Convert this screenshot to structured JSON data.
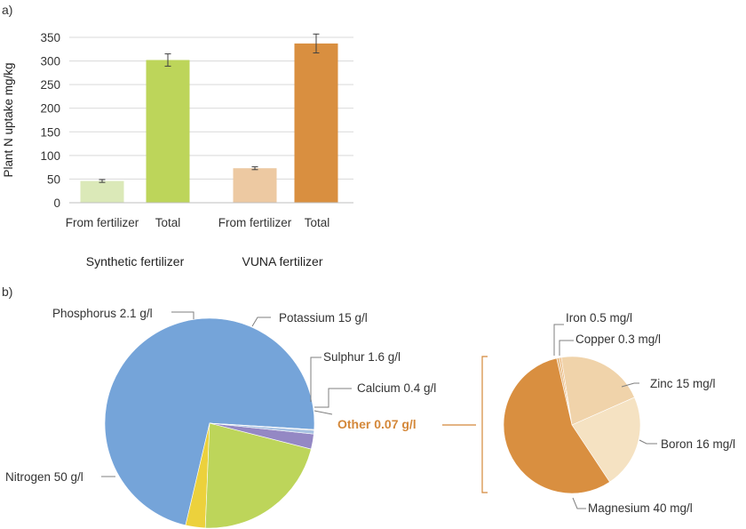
{
  "colors": {
    "axis": "#bfbfbf",
    "grid": "#d9d9d9",
    "leader": "#7f7f7f",
    "bracket": "#d4883a",
    "other_label": "#d4883a",
    "error_bar": "#404040"
  },
  "chart_data": [
    {
      "type": "bar",
      "panel_label": "a)",
      "ylabel": "Plant N uptake mg/kg",
      "ylim": [
        0,
        350
      ],
      "yticks": [
        "0",
        "50",
        "100",
        "150",
        "200",
        "250",
        "300",
        "350"
      ],
      "grid": true,
      "groups": [
        {
          "name": "Synthetic fertilizer",
          "bars": [
            {
              "label": "From fertilizer",
              "value": 46,
              "error": 3,
              "color": "#dbe9b8"
            },
            {
              "label": "Total",
              "value": 302,
              "error": 13,
              "color": "#bdd55a"
            }
          ]
        },
        {
          "name": "VUNA fertilizer",
          "bars": [
            {
              "label": "From fertilizer",
              "value": 73,
              "error": 3,
              "color": "#edc9a2"
            },
            {
              "label": "Total",
              "value": 337,
              "error": 20,
              "color": "#d98f40"
            }
          ]
        }
      ]
    },
    {
      "type": "pie",
      "panel_label": "b)",
      "slices": [
        {
          "label": "Nitrogen 50 g/l",
          "value": 50,
          "color": "#75a4d9"
        },
        {
          "label": "Phosphorus 2.1 g/l",
          "value": 2.1,
          "color": "#ecd13c"
        },
        {
          "label": "Potassium 15 g/l",
          "value": 15,
          "color": "#bdd55a"
        },
        {
          "label": "Sulphur 1.6 g/l",
          "value": 1.6,
          "color": "#9488c4"
        },
        {
          "label": "Calcium 0.4 g/l",
          "value": 0.4,
          "color": "#a8c2e2"
        },
        {
          "label": "Other 0.07 g/l",
          "value": 0.07,
          "color": "#d4883a"
        }
      ]
    },
    {
      "type": "pie",
      "title": "",
      "slices": [
        {
          "label": "Iron 0.5 mg/l",
          "value": 0.5,
          "color": "#e9c18f"
        },
        {
          "label": "Copper 0.3 mg/l",
          "value": 0.3,
          "color": "#e9b274"
        },
        {
          "label": "Zinc 15 mg/l",
          "value": 15,
          "color": "#f0d3aa"
        },
        {
          "label": "Boron 16 mg/l",
          "value": 16,
          "color": "#f5e2c2"
        },
        {
          "label": "Magnesium 40 mg/l",
          "value": 40,
          "color": "#d98f40"
        }
      ]
    }
  ]
}
